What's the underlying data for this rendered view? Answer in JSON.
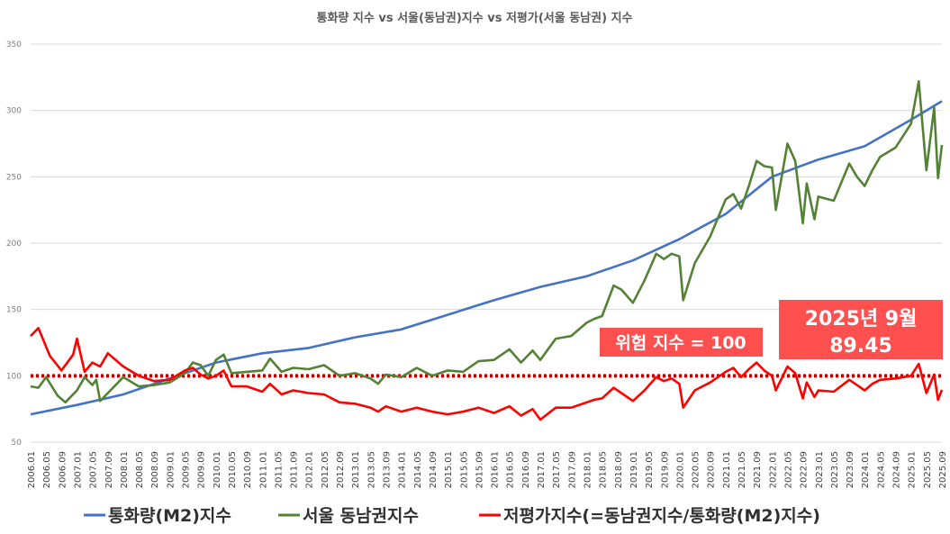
{
  "chart_data": {
    "type": "line",
    "title": "통화량 지수 vs 서울(동남권)지수 vs 저평가(서울 동남권) 지수",
    "ylim": [
      50,
      350
    ],
    "yticks": [
      50,
      100,
      150,
      200,
      250,
      300,
      350
    ],
    "grid": "horizontal",
    "legend_position": "bottom",
    "x_tick_labels": [
      "2006.01",
      "2006.05",
      "2006.09",
      "2007.01",
      "2007.05",
      "2007.09",
      "2008.01",
      "2008.05",
      "2008.09",
      "2009.01",
      "2009.05",
      "2009.09",
      "2010.01",
      "2010.05",
      "2010.09",
      "2011.01",
      "2011.05",
      "2011.09",
      "2012.01",
      "2012.05",
      "2012.09",
      "2013.01",
      "2013.05",
      "2013.09",
      "2014.01",
      "2014.05",
      "2014.09",
      "2015.01",
      "2015.05",
      "2015.09",
      "2016.01",
      "2016.05",
      "2016.09",
      "2017.01",
      "2017.05",
      "2017.09",
      "2018.01",
      "2018.05",
      "2018.09",
      "2019.01",
      "2019.05",
      "2019.09",
      "2020.01",
      "2020.05",
      "2020.09",
      "2021.01",
      "2021.05",
      "2021.09",
      "2022.01",
      "2022.05",
      "2022.09",
      "2023.01",
      "2023.05",
      "2023.09",
      "2024.01",
      "2024.05",
      "2024.09",
      "2025.01",
      "2025.05",
      "2025.09"
    ],
    "series": [
      {
        "name": "통화량(M2)지수",
        "color": "#4472C4",
        "points": [
          [
            "2006.01",
            71
          ],
          [
            "2007.01",
            78
          ],
          [
            "2008.01",
            86
          ],
          [
            "2009.01",
            98
          ],
          [
            "2010.01",
            110
          ],
          [
            "2011.01",
            117
          ],
          [
            "2012.01",
            121
          ],
          [
            "2013.01",
            129
          ],
          [
            "2014.01",
            135
          ],
          [
            "2015.01",
            146
          ],
          [
            "2016.01",
            157
          ],
          [
            "2017.01",
            167
          ],
          [
            "2018.01",
            175
          ],
          [
            "2019.01",
            187
          ],
          [
            "2020.01",
            203
          ],
          [
            "2021.01",
            222
          ],
          [
            "2022.01",
            250
          ],
          [
            "2023.01",
            263
          ],
          [
            "2024.01",
            273
          ],
          [
            "2025.01",
            293
          ],
          [
            "2025.09",
            307
          ]
        ]
      },
      {
        "name": "서울 동남권지수",
        "color": "#548235",
        "points": [
          [
            "2006.01",
            92
          ],
          [
            "2006.03",
            91
          ],
          [
            "2006.05",
            99
          ],
          [
            "2006.08",
            85
          ],
          [
            "2006.10",
            80
          ],
          [
            "2007.01",
            89
          ],
          [
            "2007.03",
            99
          ],
          [
            "2007.05",
            93
          ],
          [
            "2007.06",
            97
          ],
          [
            "2007.07",
            81
          ],
          [
            "2007.09",
            87
          ],
          [
            "2008.01",
            99
          ],
          [
            "2008.05",
            92
          ],
          [
            "2008.09",
            93
          ],
          [
            "2009.01",
            95
          ],
          [
            "2009.05",
            102
          ],
          [
            "2009.07",
            110
          ],
          [
            "2009.09",
            108
          ],
          [
            "2009.11",
            100
          ],
          [
            "2010.01",
            112
          ],
          [
            "2010.03",
            116
          ],
          [
            "2010.05",
            102
          ],
          [
            "2010.09",
            103
          ],
          [
            "2011.01",
            104
          ],
          [
            "2011.03",
            113
          ],
          [
            "2011.06",
            103
          ],
          [
            "2011.09",
            106
          ],
          [
            "2012.01",
            105
          ],
          [
            "2012.05",
            108
          ],
          [
            "2012.09",
            100
          ],
          [
            "2013.01",
            102
          ],
          [
            "2013.05",
            98
          ],
          [
            "2013.07",
            94
          ],
          [
            "2013.09",
            101
          ],
          [
            "2014.01",
            99
          ],
          [
            "2014.05",
            106
          ],
          [
            "2014.09",
            100
          ],
          [
            "2015.01",
            104
          ],
          [
            "2015.05",
            103
          ],
          [
            "2015.09",
            111
          ],
          [
            "2016.01",
            112
          ],
          [
            "2016.05",
            120
          ],
          [
            "2016.08",
            110
          ],
          [
            "2016.11",
            119
          ],
          [
            "2017.01",
            112
          ],
          [
            "2017.05",
            128
          ],
          [
            "2017.09",
            130
          ],
          [
            "2018.01",
            140
          ],
          [
            "2018.03",
            143
          ],
          [
            "2018.05",
            145
          ],
          [
            "2018.08",
            168
          ],
          [
            "2018.10",
            165
          ],
          [
            "2019.01",
            155
          ],
          [
            "2019.04",
            172
          ],
          [
            "2019.07",
            192
          ],
          [
            "2019.09",
            188
          ],
          [
            "2019.11",
            192
          ],
          [
            "2020.01",
            190
          ],
          [
            "2020.02",
            157
          ],
          [
            "2020.05",
            185
          ],
          [
            "2020.09",
            205
          ],
          [
            "2021.01",
            233
          ],
          [
            "2021.03",
            237
          ],
          [
            "2021.05",
            226
          ],
          [
            "2021.07",
            243
          ],
          [
            "2021.09",
            262
          ],
          [
            "2021.11",
            258
          ],
          [
            "2022.01",
            257
          ],
          [
            "2022.02",
            225
          ],
          [
            "2022.05",
            275
          ],
          [
            "2022.07",
            262
          ],
          [
            "2022.09",
            215
          ],
          [
            "2022.10",
            245
          ],
          [
            "2022.12",
            218
          ],
          [
            "2023.01",
            235
          ],
          [
            "2023.05",
            232
          ],
          [
            "2023.09",
            260
          ],
          [
            "2023.11",
            250
          ],
          [
            "2024.01",
            243
          ],
          [
            "2024.03",
            255
          ],
          [
            "2024.05",
            265
          ],
          [
            "2024.09",
            272
          ],
          [
            "2025.01",
            290
          ],
          [
            "2025.03",
            322
          ],
          [
            "2025.05",
            255
          ],
          [
            "2025.07",
            302
          ],
          [
            "2025.08",
            249
          ],
          [
            "2025.09",
            274
          ]
        ]
      },
      {
        "name": "저평가지수(=동남권지수/통화량(M2)지수)",
        "color": "#FF0000",
        "points": [
          [
            "2006.01",
            130
          ],
          [
            "2006.03",
            136
          ],
          [
            "2006.06",
            115
          ],
          [
            "2006.09",
            104
          ],
          [
            "2006.12",
            116
          ],
          [
            "2007.01",
            128
          ],
          [
            "2007.03",
            103
          ],
          [
            "2007.05",
            110
          ],
          [
            "2007.07",
            107
          ],
          [
            "2007.09",
            117
          ],
          [
            "2008.01",
            107
          ],
          [
            "2008.05",
            100
          ],
          [
            "2008.09",
            96
          ],
          [
            "2009.01",
            97
          ],
          [
            "2009.05",
            104
          ],
          [
            "2009.07",
            106
          ],
          [
            "2009.09",
            101
          ],
          [
            "2009.11",
            98
          ],
          [
            "2010.01",
            100
          ],
          [
            "2010.03",
            104
          ],
          [
            "2010.05",
            92
          ],
          [
            "2010.09",
            92
          ],
          [
            "2011.01",
            88
          ],
          [
            "2011.03",
            94
          ],
          [
            "2011.06",
            86
          ],
          [
            "2011.09",
            89
          ],
          [
            "2012.01",
            87
          ],
          [
            "2012.05",
            86
          ],
          [
            "2012.09",
            80
          ],
          [
            "2013.01",
            79
          ],
          [
            "2013.05",
            76
          ],
          [
            "2013.07",
            73
          ],
          [
            "2013.09",
            77
          ],
          [
            "2014.01",
            73
          ],
          [
            "2014.05",
            76
          ],
          [
            "2014.09",
            73
          ],
          [
            "2015.01",
            71
          ],
          [
            "2015.05",
            73
          ],
          [
            "2015.09",
            76
          ],
          [
            "2016.01",
            72
          ],
          [
            "2016.05",
            77
          ],
          [
            "2016.08",
            70
          ],
          [
            "2016.11",
            75
          ],
          [
            "2017.01",
            67
          ],
          [
            "2017.05",
            76
          ],
          [
            "2017.09",
            76
          ],
          [
            "2018.01",
            80
          ],
          [
            "2018.03",
            82
          ],
          [
            "2018.05",
            83
          ],
          [
            "2018.08",
            91
          ],
          [
            "2018.10",
            87
          ],
          [
            "2019.01",
            81
          ],
          [
            "2019.04",
            89
          ],
          [
            "2019.07",
            99
          ],
          [
            "2019.09",
            96
          ],
          [
            "2019.11",
            98
          ],
          [
            "2020.01",
            94
          ],
          [
            "2020.02",
            76
          ],
          [
            "2020.05",
            89
          ],
          [
            "2020.09",
            95
          ],
          [
            "2021.01",
            103
          ],
          [
            "2021.03",
            106
          ],
          [
            "2021.05",
            99
          ],
          [
            "2021.07",
            105
          ],
          [
            "2021.09",
            110
          ],
          [
            "2021.11",
            104
          ],
          [
            "2022.01",
            100
          ],
          [
            "2022.02",
            89
          ],
          [
            "2022.05",
            107
          ],
          [
            "2022.07",
            102
          ],
          [
            "2022.09",
            83
          ],
          [
            "2022.10",
            95
          ],
          [
            "2022.12",
            84
          ],
          [
            "2023.01",
            89
          ],
          [
            "2023.05",
            88
          ],
          [
            "2023.09",
            97
          ],
          [
            "2023.11",
            93
          ],
          [
            "2024.01",
            89
          ],
          [
            "2024.03",
            94
          ],
          [
            "2024.05",
            97
          ],
          [
            "2024.09",
            98
          ],
          [
            "2025.01",
            100
          ],
          [
            "2025.03",
            109
          ],
          [
            "2025.05",
            87
          ],
          [
            "2025.07",
            101
          ],
          [
            "2025.08",
            82
          ],
          [
            "2025.09",
            89.45
          ]
        ]
      }
    ],
    "reference_line": {
      "value": 100,
      "color": "#C00000",
      "style": "dotted"
    },
    "annotations": [
      {
        "text": "위험 지수 = 100",
        "color": "#FF5050"
      },
      {
        "lines": [
          "2025년 9월",
          "89.45"
        ],
        "color": "#FF5050"
      }
    ]
  }
}
